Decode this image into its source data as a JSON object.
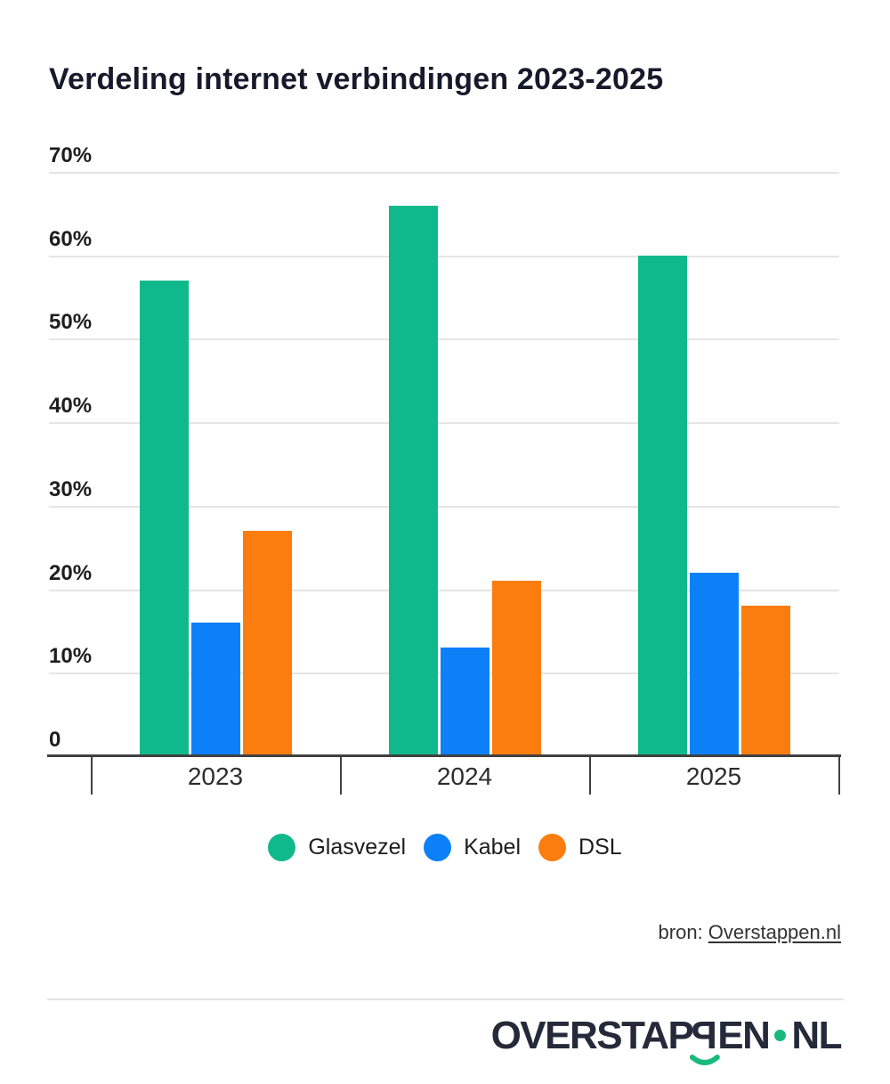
{
  "title": "Verdeling internet verbindingen 2023-2025",
  "chart_data": {
    "type": "bar",
    "title": "Verdeling internet verbindingen 2023-2025",
    "categories": [
      "2023",
      "2024",
      "2025"
    ],
    "series": [
      {
        "name": "Glasvezel",
        "color": "#10b98c",
        "values": [
          57,
          66,
          60
        ]
      },
      {
        "name": "Kabel",
        "color": "#0b80f7",
        "values": [
          16,
          13,
          22
        ]
      },
      {
        "name": "DSL",
        "color": "#fb7d10",
        "values": [
          27,
          21,
          18
        ]
      }
    ],
    "unit": "%",
    "ylim": [
      0,
      70
    ],
    "yticks": [
      {
        "value": 70,
        "label": "70%"
      },
      {
        "value": 60,
        "label": "60%"
      },
      {
        "value": 50,
        "label": "50%"
      },
      {
        "value": 40,
        "label": "40%"
      },
      {
        "value": 30,
        "label": "30%"
      },
      {
        "value": 20,
        "label": "20%"
      },
      {
        "value": 10,
        "label": "10%"
      },
      {
        "value": 0,
        "label": "0"
      }
    ],
    "grid": true,
    "legend_position": "bottom"
  },
  "legend": {
    "items": [
      {
        "label": "Glasvezel",
        "color": "#10b98c"
      },
      {
        "label": "Kabel",
        "color": "#0b80f7"
      },
      {
        "label": "DSL",
        "color": "#fb7d10"
      }
    ]
  },
  "source": {
    "prefix": "bron: ",
    "link_text": "Overstappen.nl"
  },
  "footer": {
    "logo_part1": "OVERSTAP",
    "logo_mirrored_letter": "P",
    "logo_part2": "EN",
    "logo_part3": "NL",
    "logo_accent_color": "#18b97d"
  },
  "colors": {
    "title": "#171a2b",
    "axis": "#404040",
    "grid": "#e5e5e5",
    "logo": "#252a3a"
  }
}
